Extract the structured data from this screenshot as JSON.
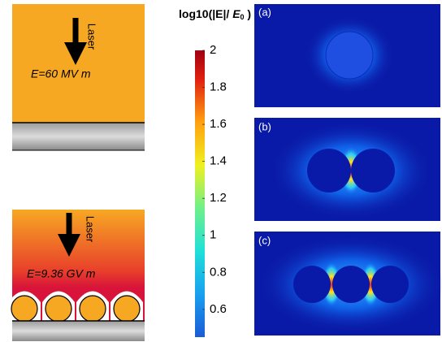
{
  "left_panels": [
    {
      "arrow_label": "Laser",
      "field_label": "E=60 MV m"
    },
    {
      "arrow_label": "Laser",
      "field_label": "E=9.36 GV m"
    }
  ],
  "colorbar": {
    "title": {
      "prefix": "log10(|E|/ ",
      "symbol": "E",
      "subscript": "0",
      "suffix": " )"
    },
    "lim": [
      0.45,
      2
    ],
    "ticks": [
      2,
      1.8,
      1.6,
      1.4,
      1.2,
      1,
      0.8,
      0.6
    ]
  },
  "panels": [
    {
      "label": "(a)"
    },
    {
      "label": "(b)"
    },
    {
      "label": "(c)"
    }
  ]
}
